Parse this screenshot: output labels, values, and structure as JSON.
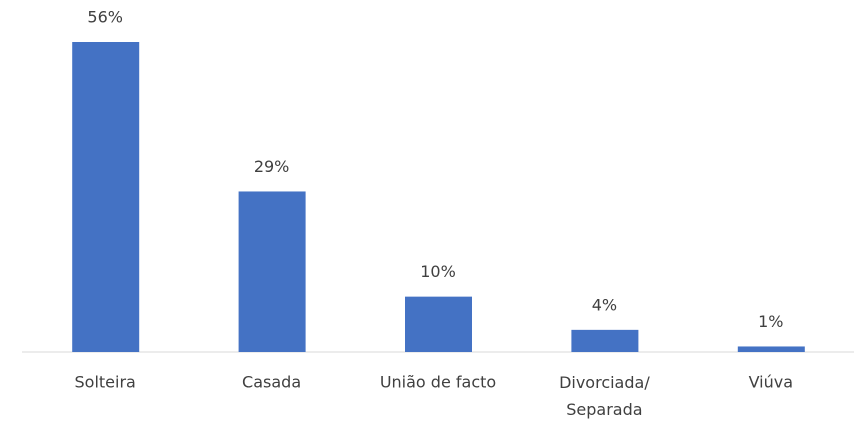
{
  "chart_data": {
    "type": "bar",
    "categories": [
      "Solteira",
      "Casada",
      "União de facto",
      "Divorciada/ Separada",
      "Viúva"
    ],
    "values": [
      56,
      29,
      10,
      4,
      1
    ],
    "value_labels": [
      "56%",
      "29%",
      "10%",
      "4%",
      "1%"
    ],
    "color": "#4472c4"
  }
}
